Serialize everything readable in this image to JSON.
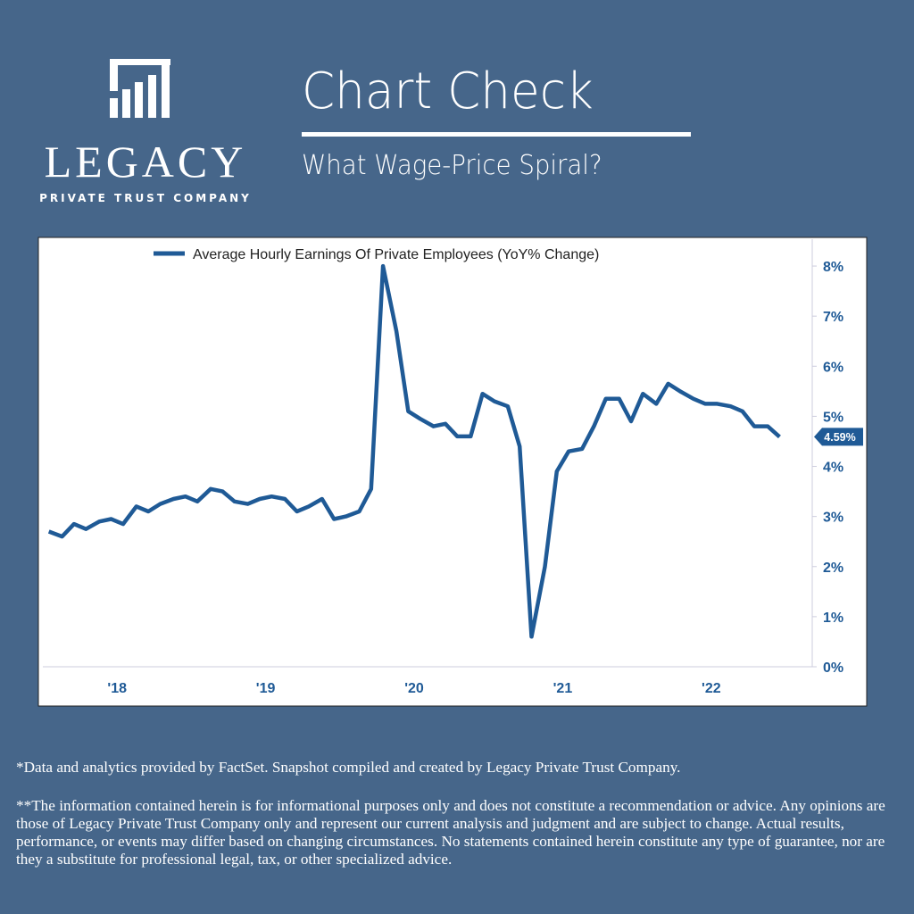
{
  "header": {
    "logo_name": "LEGACY",
    "logo_tagline": "PRIVATE TRUST COMPANY",
    "title": "Chart Check",
    "subtitle": "What Wage-Price Spiral?"
  },
  "chart_data": {
    "type": "line",
    "series": [
      {
        "name": "Average Hourly Earnings Of Private Employees (YoY% Change)",
        "color": "#1f5a96",
        "x": [
          2018.04,
          2018.13,
          2018.21,
          2018.29,
          2018.38,
          2018.46,
          2018.54,
          2018.63,
          2018.71,
          2018.79,
          2018.88,
          2018.96,
          2019.04,
          2019.13,
          2019.21,
          2019.29,
          2019.38,
          2019.46,
          2019.54,
          2019.63,
          2019.71,
          2019.79,
          2019.88,
          2019.96,
          2020.04,
          2020.13,
          2020.21,
          2020.29,
          2020.38,
          2020.46,
          2020.54,
          2020.63,
          2020.71,
          2020.79,
          2020.88,
          2020.96,
          2021.04,
          2021.13,
          2021.21,
          2021.29,
          2021.38,
          2021.46,
          2021.54,
          2021.63,
          2021.71,
          2021.79,
          2021.88,
          2021.96,
          2022.04,
          2022.13,
          2022.21,
          2022.29,
          2022.38,
          2022.46,
          2022.54,
          2022.63,
          2022.71,
          2022.79,
          2022.88,
          2022.96
        ],
        "values": [
          2.7,
          2.6,
          2.85,
          2.75,
          2.9,
          2.95,
          2.85,
          3.2,
          3.1,
          3.25,
          3.35,
          3.4,
          3.3,
          3.55,
          3.5,
          3.3,
          3.25,
          3.35,
          3.4,
          3.35,
          3.1,
          3.2,
          3.35,
          2.95,
          3.0,
          3.1,
          3.55,
          8.0,
          6.7,
          5.1,
          4.95,
          4.8,
          4.85,
          4.6,
          4.6,
          5.45,
          5.3,
          5.2,
          4.4,
          0.6,
          2.0,
          3.9,
          4.3,
          4.35,
          4.8,
          5.35,
          5.35,
          4.9,
          5.45,
          5.25,
          5.65,
          5.5,
          5.35,
          5.25,
          5.25,
          5.2,
          5.1,
          4.8,
          4.8,
          4.59
        ]
      }
    ],
    "annotations": [
      {
        "label": "4.59%",
        "y": 4.59
      }
    ],
    "xlim": [
      2018,
      2023.18
    ],
    "xticks": [
      {
        "value": 2018.5,
        "label": "'18"
      },
      {
        "value": 2019.5,
        "label": "'19"
      },
      {
        "value": 2020.5,
        "label": "'20"
      },
      {
        "value": 2021.5,
        "label": "'21"
      },
      {
        "value": 2022.5,
        "label": "'22"
      }
    ],
    "ylim": [
      0,
      8.5
    ],
    "yticks": [
      {
        "value": 0,
        "label": "0%"
      },
      {
        "value": 1,
        "label": "1%"
      },
      {
        "value": 2,
        "label": "2%"
      },
      {
        "value": 3,
        "label": "3%"
      },
      {
        "value": 4,
        "label": "4%"
      },
      {
        "value": 5,
        "label": "5%"
      },
      {
        "value": 6,
        "label": "6%"
      },
      {
        "value": 7,
        "label": "7%"
      },
      {
        "value": 8,
        "label": "8%"
      }
    ],
    "grid": false
  },
  "footer": {
    "source": "*Data and analytics provided by FactSet. Snapshot compiled and created by Legacy Private Trust Company.",
    "disclaimer": "**The information contained herein is for informational purposes only and does not constitute a recommendation or advice. Any opinions are those of Legacy Private Trust Company only and represent our current analysis and judgment and are subject to change. Actual results, performance, or events may differ based on changing circumstances. No statements contained herein constitute any type of guarantee, nor are they a substitute for professional legal, tax, or other specialized advice."
  }
}
